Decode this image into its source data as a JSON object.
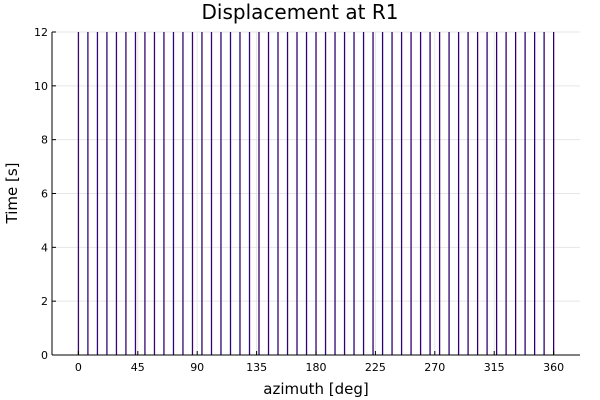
{
  "chart_data": {
    "type": "line",
    "title": "Displacement at R1",
    "xlabel": "azimuth [deg]",
    "ylabel": "Time [s]",
    "xlim": [
      -20,
      380
    ],
    "ylim": [
      0,
      12
    ],
    "x_ticks": [
      0,
      45,
      90,
      135,
      180,
      225,
      270,
      315,
      360
    ],
    "y_ticks": [
      0,
      2,
      4,
      6,
      8,
      10,
      12
    ],
    "grid": true,
    "legend": "none",
    "series_colors": [
      "#00008b",
      "#d9263a"
    ],
    "vertical_line_positions_deg": [
      0,
      7.2,
      14.4,
      21.6,
      28.8,
      36,
      43.2,
      50.4,
      57.6,
      64.8,
      72,
      79.2,
      86.4,
      93.6,
      100.8,
      108,
      115.2,
      122.4,
      129.6,
      136.8,
      144,
      151.2,
      158.4,
      165.6,
      172.8,
      180,
      187.2,
      194.4,
      201.6,
      208.8,
      216,
      223.2,
      230.4,
      237.6,
      244.8,
      252,
      259.2,
      266.4,
      273.6,
      280.8,
      288,
      295.2,
      302.4,
      309.6,
      316.8,
      324,
      331.2,
      338.4,
      345.6,
      352.8,
      360
    ]
  }
}
